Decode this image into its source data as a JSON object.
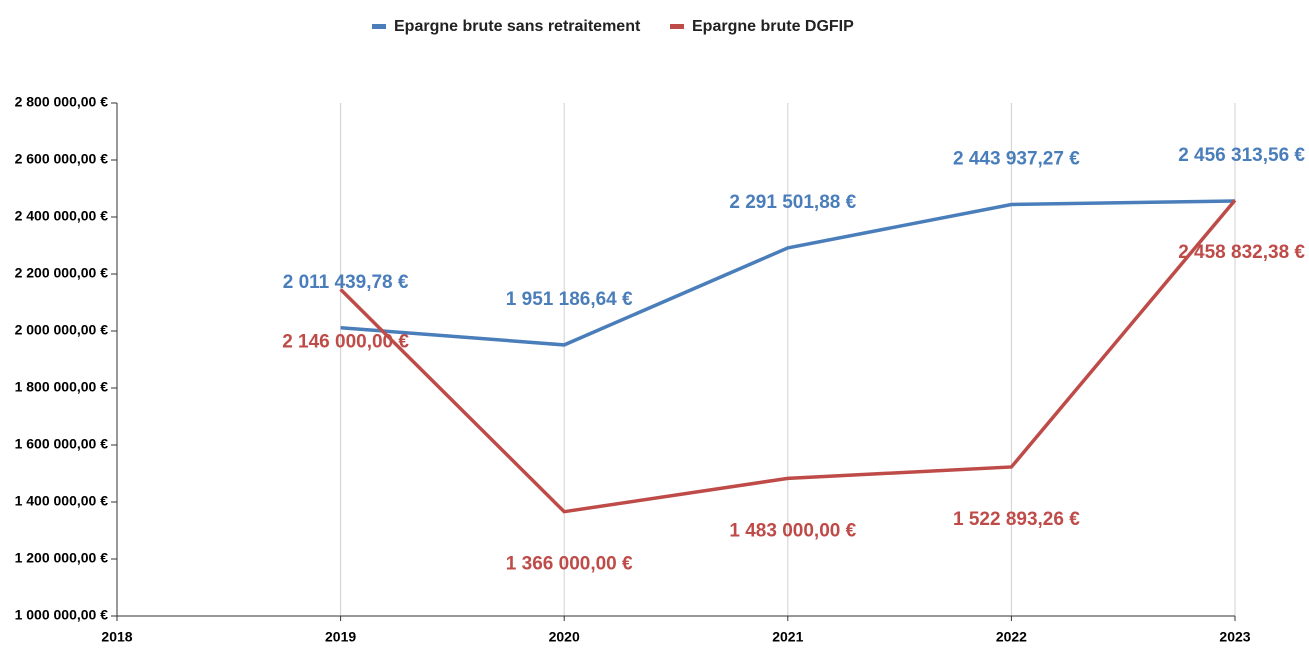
{
  "chart_data": {
    "type": "line",
    "x": [
      2019,
      2020,
      2021,
      2022,
      2023
    ],
    "xlim": [
      2018,
      2023
    ],
    "xticks": [
      2018,
      2019,
      2020,
      2021,
      2022,
      2023
    ],
    "ylim": [
      1000000,
      2800000
    ],
    "yticks": [
      {
        "value": 1000000,
        "label": "1 000 000,00 €"
      },
      {
        "value": 1200000,
        "label": "1 200 000,00 €"
      },
      {
        "value": 1400000,
        "label": "1 400 000,00 €"
      },
      {
        "value": 1600000,
        "label": "1 600 000,00 €"
      },
      {
        "value": 1800000,
        "label": "1 800 000,00 €"
      },
      {
        "value": 2000000,
        "label": "2 000 000,00 €"
      },
      {
        "value": 2200000,
        "label": "2 200 000,00 €"
      },
      {
        "value": 2400000,
        "label": "2 400 000,00 €"
      },
      {
        "value": 2600000,
        "label": "2 600 000,00 €"
      },
      {
        "value": 2800000,
        "label": "2 800 000,00 €"
      }
    ],
    "grid": "x",
    "legend": "top",
    "series": [
      {
        "name": "Epargne brute sans retraitement",
        "color": "#4a7ebb",
        "values": [
          2011439.78,
          1951186.64,
          2291501.88,
          2443937.27,
          2456313.56
        ],
        "value_labels": [
          "2 011 439,78  €",
          "1 951 186,64  €",
          "2 291 501,88  €",
          "2 443 937,27  €",
          "2 456 313,56  €"
        ]
      },
      {
        "name": "Epargne brute DGFIP",
        "color": "#be4b48",
        "values": [
          2146000,
          1366000,
          1483000,
          1522893.26,
          2458832.38
        ],
        "value_labels": [
          "2 146 000,00 €",
          "1 366 000,00  €",
          "1 483 000,00 €",
          "1 522 893,26  €",
          "2 458 832,38  €"
        ]
      }
    ]
  }
}
